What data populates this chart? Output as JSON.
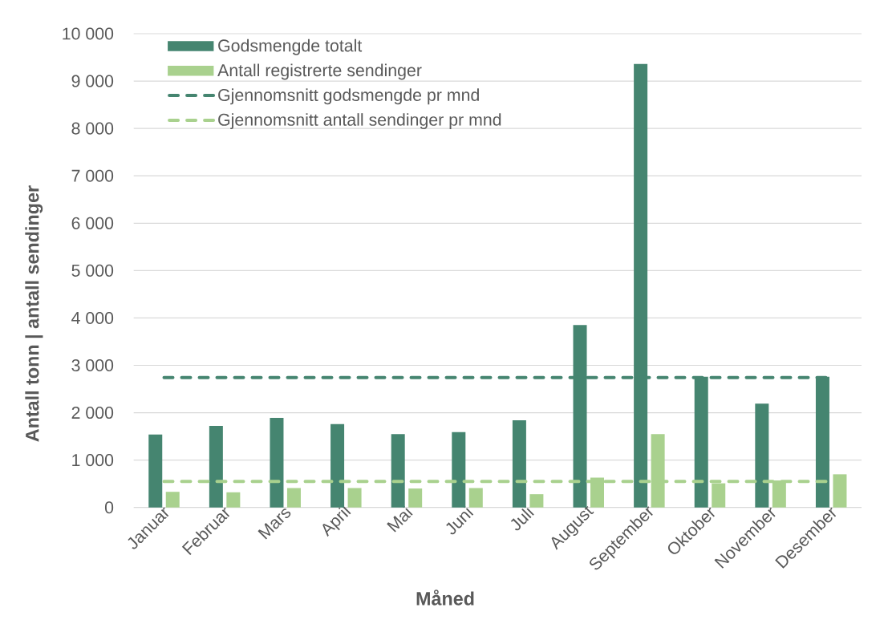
{
  "chart_data": {
    "type": "bar",
    "xlabel": "Måned",
    "ylabel": "Antall tonn | antall sendinger",
    "categories": [
      "Januar",
      "Februar",
      "Mars",
      "April",
      "Mai",
      "Juni",
      "Juli",
      "August",
      "September",
      "Oktober",
      "November",
      "Desember"
    ],
    "series": [
      {
        "name": "Godsmengde totalt",
        "color": "#458570",
        "values": [
          1540,
          1720,
          1890,
          1760,
          1550,
          1590,
          1840,
          3850,
          9360,
          2760,
          2190,
          2760
        ]
      },
      {
        "name": "Antall registrerte sendinger",
        "color": "#a9d18e",
        "values": [
          330,
          320,
          410,
          410,
          400,
          410,
          280,
          630,
          1550,
          510,
          570,
          700
        ]
      },
      {
        "name": "Gjennomsnitt godsmengde pr mnd",
        "type": "line",
        "line_style": "dashed",
        "color": "#458570",
        "values": [
          2740,
          2740,
          2740,
          2740,
          2740,
          2740,
          2740,
          2740,
          2740,
          2740,
          2740,
          2740
        ]
      },
      {
        "name": "Gjennomsnitt antall sendinger pr mnd",
        "type": "line",
        "line_style": "dashed",
        "color": "#a9d18e",
        "values": [
          550,
          550,
          550,
          550,
          550,
          550,
          550,
          550,
          550,
          550,
          550,
          550
        ]
      }
    ],
    "ylim": [
      0,
      10000
    ],
    "yticks": [
      0,
      {
        "value": 1000,
        "label": "1 000"
      },
      {
        "value": 2000,
        "label": "2 000"
      },
      {
        "value": 3000,
        "label": "3 000"
      },
      {
        "value": 4000,
        "label": "4 000"
      },
      {
        "value": 5000,
        "label": "5 000"
      },
      {
        "value": 6000,
        "label": "6 000"
      },
      {
        "value": 7000,
        "label": "7 000"
      },
      {
        "value": 8000,
        "label": "8 000"
      },
      {
        "value": 9000,
        "label": "9 000"
      },
      {
        "value": 10000,
        "label": "10 000"
      }
    ],
    "grid": "y",
    "legend": "top left"
  }
}
